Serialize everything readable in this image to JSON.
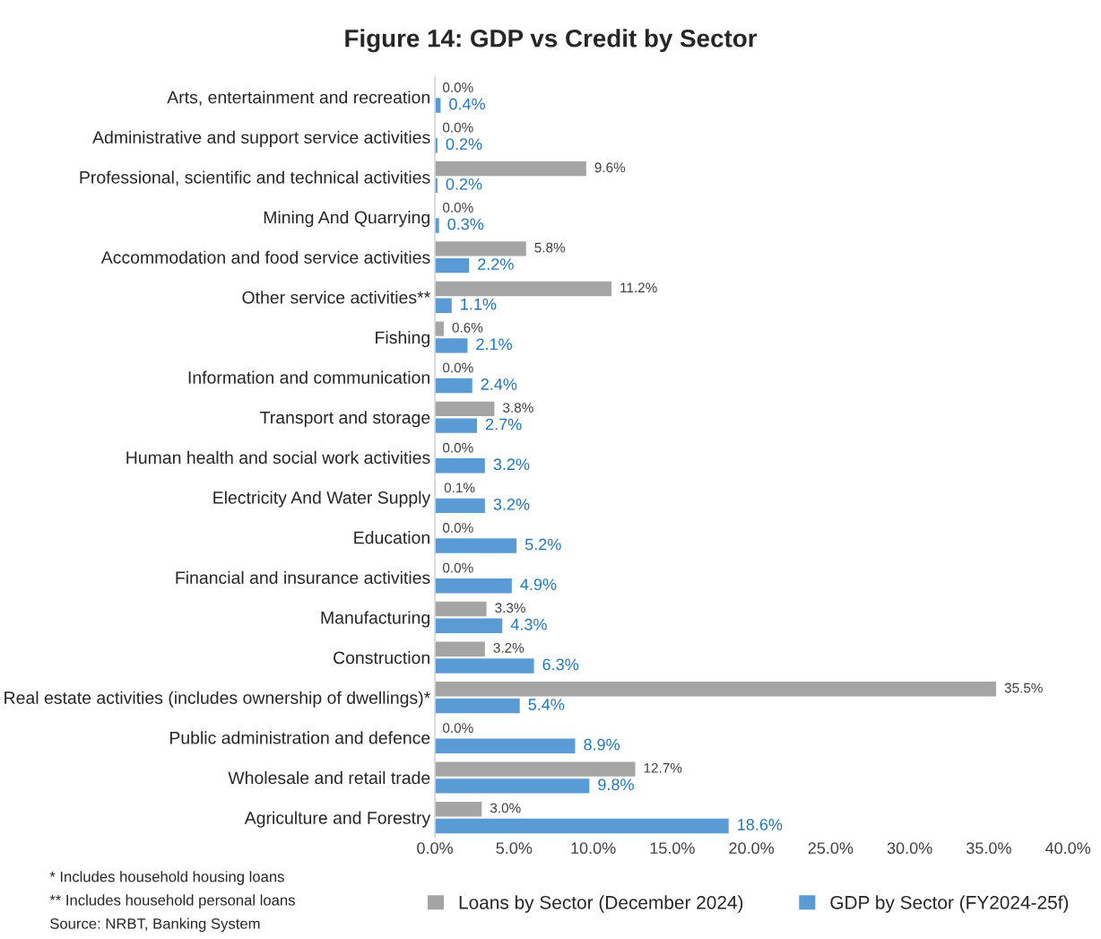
{
  "chart_data": {
    "type": "bar",
    "orientation": "horizontal",
    "title": "Figure 14: GDP vs Credit by Sector",
    "categories": [
      "Arts, entertainment and recreation",
      "Administrative and support service activities",
      "Professional, scientific and technical activities",
      "Mining And Quarrying",
      "Accommodation and food service activities",
      "Other service activities**",
      "Fishing",
      "Information and communication",
      "Transport and storage",
      "Human health and social work activities",
      "Electricity And Water Supply",
      "Education",
      "Financial and insurance activities",
      "Manufacturing",
      "Construction",
      "Real estate activities (includes ownership of dwellings)*",
      "Public administration and defence",
      "Wholesale and retail trade",
      "Agriculture and Forestry"
    ],
    "series": [
      {
        "name": "Loans by Sector (December 2024)",
        "color": "#a5a5a5",
        "values": [
          0.0,
          0.0,
          9.6,
          0.0,
          5.8,
          11.2,
          0.6,
          0.0,
          3.8,
          0.0,
          0.1,
          0.0,
          0.0,
          3.3,
          3.2,
          35.5,
          0.0,
          12.7,
          3.0
        ],
        "value_labels": [
          "0.0%",
          "0.0%",
          "9.6%",
          "0.0%",
          "5.8%",
          "11.2%",
          "0.6%",
          "0.0%",
          "3.8%",
          "0.0%",
          "0.1%",
          "0.0%",
          "0.0%",
          "3.3%",
          "3.2%",
          "35.5%",
          "0.0%",
          "12.7%",
          "3.0%"
        ]
      },
      {
        "name": "GDP by Sector (FY2024-25f)",
        "color": "#5b9bd5",
        "values": [
          0.4,
          0.2,
          0.2,
          0.3,
          2.2,
          1.1,
          2.1,
          2.4,
          2.7,
          3.2,
          3.2,
          5.2,
          4.9,
          4.3,
          6.3,
          5.4,
          8.9,
          9.8,
          18.6
        ],
        "value_labels": [
          "0.4%",
          "0.2%",
          "0.2%",
          "0.3%",
          "2.2%",
          "1.1%",
          "2.1%",
          "2.4%",
          "2.7%",
          "3.2%",
          "3.2%",
          "5.2%",
          "4.9%",
          "4.3%",
          "6.3%",
          "5.4%",
          "8.9%",
          "9.8%",
          "18.6%"
        ]
      }
    ],
    "xlim": [
      0,
      40
    ],
    "xticks": [
      {
        "value": 0,
        "label": "0.0%"
      },
      {
        "value": 5,
        "label": "5.0%"
      },
      {
        "value": 10,
        "label": "10.0%"
      },
      {
        "value": 15,
        "label": "15.0%"
      },
      {
        "value": 20,
        "label": "20.0%"
      },
      {
        "value": 25,
        "label": "25.0%"
      },
      {
        "value": 30,
        "label": "30.0%"
      },
      {
        "value": 35,
        "label": "35.0%"
      },
      {
        "value": 40,
        "label": "40.0%"
      }
    ],
    "grid": false,
    "legend": "bottom",
    "annotations": [
      "* Includes household housing loans",
      "** Includes household personal loans",
      "Source: NRBT, Banking System"
    ]
  }
}
